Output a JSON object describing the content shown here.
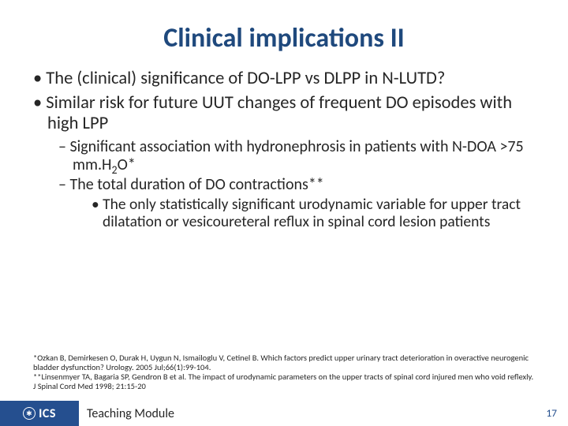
{
  "title": {
    "text": "Clinical implications II",
    "color": "#1f497d",
    "fontsize": 34
  },
  "bullets": {
    "l1_a": "The (clinical) significance of DO-LPP vs DLPP in N-LUTD?",
    "l1_b": "Similar risk for future UUT changes of frequent DO episodes with high LPP",
    "l2_a_pre": "Significant association with hydronephrosis in patients with N-DOA >75 mm.H",
    "l2_a_sub": "2",
    "l2_a_post": "O*",
    "l2_b": "The total duration of DO contractions**",
    "l3_a": "The only statistically significant urodynamic variable for upper tract dilatation or vesicoureteral reflux in spinal cord lesion patients"
  },
  "footnotes": {
    "f1": "*Ozkan B, Demirkesen O, Durak H, Uygun N, Ismailoglu V, Cetinel B. Which factors predict upper urinary tract deterioration in overactive neurogenic bladder dysfunction? Urology. 2005 Jul;66(1):99-104.",
    "f2": "**Linsenmyer TA, Bagaria SP, Gendron B et al. The impact of urodynamic parameters on the upper tracts of spinal cord injured men who void reflexly. J Spinal Cord Med 1998; 21:15-20"
  },
  "footer": {
    "logo_text": "ICS",
    "module_text": "Teaching Module",
    "page_number": "17",
    "bar_color": "#254f8f",
    "page_num_color": "#254f8f"
  },
  "colors": {
    "body_text": "#262626",
    "background": "#ffffff"
  }
}
